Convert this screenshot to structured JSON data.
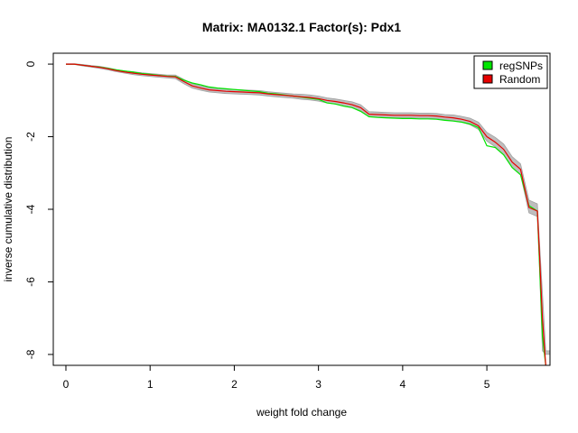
{
  "chart_data": {
    "type": "line",
    "title": "Matrix: MA0132.1 Factor(s): Pdx1",
    "xlabel": "weight fold change",
    "ylabel": "inverse cumulative distribution",
    "xlim": [
      -0.15,
      5.75
    ],
    "ylim": [
      -8.3,
      0.3
    ],
    "x_ticks": [
      0,
      1,
      2,
      3,
      4,
      5
    ],
    "y_ticks": [
      0,
      -2,
      -4,
      -6,
      -8
    ],
    "grid": false,
    "legend_position": "top-right",
    "colors": {
      "regSNPs": "#00e600",
      "Random": "#e60000",
      "band": "#bebebe",
      "band_edge": "#a0a0a0"
    },
    "series": [
      {
        "name": "regSNPs",
        "color": "#00e600",
        "x": [
          0,
          0.1,
          0.2,
          0.3,
          0.4,
          0.5,
          0.6,
          0.7,
          0.8,
          0.9,
          1.0,
          1.1,
          1.2,
          1.3,
          1.4,
          1.5,
          1.6,
          1.7,
          1.8,
          1.9,
          2.0,
          2.1,
          2.2,
          2.3,
          2.4,
          2.5,
          2.6,
          2.7,
          2.8,
          2.9,
          3.0,
          3.1,
          3.2,
          3.3,
          3.4,
          3.5,
          3.6,
          3.7,
          3.8,
          3.9,
          4.0,
          4.1,
          4.2,
          4.3,
          4.4,
          4.5,
          4.6,
          4.7,
          4.8,
          4.9,
          5.0,
          5.1,
          5.2,
          5.3,
          5.4,
          5.5,
          5.6,
          5.62,
          5.66,
          5.7
        ],
        "y": [
          0,
          0,
          -0.03,
          -0.06,
          -0.08,
          -0.12,
          -0.16,
          -0.19,
          -0.22,
          -0.26,
          -0.28,
          -0.31,
          -0.33,
          -0.34,
          -0.44,
          -0.52,
          -0.57,
          -0.63,
          -0.66,
          -0.68,
          -0.7,
          -0.72,
          -0.74,
          -0.76,
          -0.8,
          -0.82,
          -0.85,
          -0.88,
          -0.91,
          -0.94,
          -0.97,
          -1.07,
          -1.1,
          -1.16,
          -1.2,
          -1.3,
          -1.45,
          -1.47,
          -1.48,
          -1.49,
          -1.5,
          -1.5,
          -1.51,
          -1.51,
          -1.52,
          -1.55,
          -1.57,
          -1.6,
          -1.65,
          -1.75,
          -2.25,
          -2.3,
          -2.5,
          -2.85,
          -3.05,
          -3.9,
          -4.05,
          -5.2,
          -7.5,
          -8.3
        ]
      },
      {
        "name": "Random",
        "color": "#e60000",
        "x": [
          0,
          0.1,
          0.2,
          0.3,
          0.4,
          0.5,
          0.6,
          0.7,
          0.8,
          0.9,
          1.0,
          1.1,
          1.2,
          1.3,
          1.4,
          1.5,
          1.6,
          1.7,
          1.8,
          1.9,
          2.0,
          2.1,
          2.2,
          2.3,
          2.4,
          2.5,
          2.6,
          2.7,
          2.8,
          2.9,
          3.0,
          3.1,
          3.2,
          3.3,
          3.4,
          3.5,
          3.6,
          3.7,
          3.8,
          3.9,
          4.0,
          4.1,
          4.2,
          4.3,
          4.4,
          4.5,
          4.6,
          4.7,
          4.8,
          4.9,
          5.0,
          5.1,
          5.2,
          5.3,
          5.4,
          5.5,
          5.6,
          5.62,
          5.66,
          5.7
        ],
        "y": [
          0,
          0,
          -0.03,
          -0.06,
          -0.09,
          -0.13,
          -0.18,
          -0.22,
          -0.25,
          -0.28,
          -0.3,
          -0.32,
          -0.34,
          -0.35,
          -0.48,
          -0.6,
          -0.66,
          -0.71,
          -0.73,
          -0.75,
          -0.76,
          -0.77,
          -0.78,
          -0.79,
          -0.82,
          -0.84,
          -0.86,
          -0.88,
          -0.9,
          -0.92,
          -0.95,
          -1.0,
          -1.03,
          -1.07,
          -1.12,
          -1.2,
          -1.38,
          -1.39,
          -1.4,
          -1.41,
          -1.41,
          -1.41,
          -1.42,
          -1.42,
          -1.43,
          -1.46,
          -1.48,
          -1.52,
          -1.58,
          -1.7,
          -2.0,
          -2.15,
          -2.35,
          -2.7,
          -2.9,
          -3.95,
          -4.05,
          -5.0,
          -7.0,
          -8.3
        ]
      },
      {
        "name": "",
        "color": "#bebebe",
        "x": [
          0,
          0.1,
          0.2,
          0.3,
          0.4,
          0.5,
          0.6,
          0.7,
          0.8,
          0.9,
          1.0,
          1.1,
          1.2,
          1.3,
          1.4,
          1.5,
          1.6,
          1.7,
          1.8,
          1.9,
          2.0,
          2.1,
          2.2,
          2.3,
          2.4,
          2.5,
          2.6,
          2.7,
          2.8,
          2.9,
          3.0,
          3.1,
          3.2,
          3.3,
          3.4,
          3.5,
          3.6,
          3.7,
          3.8,
          3.9,
          4.0,
          4.1,
          4.2,
          4.3,
          4.4,
          4.5,
          4.6,
          4.7,
          4.8,
          4.9,
          5.0,
          5.1,
          5.2,
          5.3,
          5.4,
          5.5,
          5.6,
          5.62,
          5.66,
          5.7,
          5.75
        ],
        "y_low": [
          -0.01,
          -0.01,
          -0.05,
          -0.08,
          -0.12,
          -0.16,
          -0.21,
          -0.25,
          -0.29,
          -0.32,
          -0.34,
          -0.36,
          -0.38,
          -0.4,
          -0.54,
          -0.66,
          -0.72,
          -0.77,
          -0.79,
          -0.81,
          -0.82,
          -0.83,
          -0.84,
          -0.85,
          -0.88,
          -0.9,
          -0.92,
          -0.94,
          -0.97,
          -0.99,
          -1.02,
          -1.07,
          -1.1,
          -1.15,
          -1.2,
          -1.28,
          -1.45,
          -1.46,
          -1.47,
          -1.48,
          -1.48,
          -1.48,
          -1.49,
          -1.49,
          -1.5,
          -1.53,
          -1.56,
          -1.6,
          -1.67,
          -1.8,
          -2.12,
          -2.28,
          -2.5,
          -2.85,
          -3.05,
          -4.1,
          -4.2,
          -5.3,
          -7.9,
          -8.0,
          -8.0
        ],
        "y_high": [
          0.01,
          0.01,
          -0.01,
          -0.04,
          -0.06,
          -0.1,
          -0.15,
          -0.19,
          -0.21,
          -0.24,
          -0.26,
          -0.28,
          -0.3,
          -0.3,
          -0.42,
          -0.54,
          -0.6,
          -0.65,
          -0.67,
          -0.69,
          -0.7,
          -0.71,
          -0.72,
          -0.73,
          -0.76,
          -0.78,
          -0.8,
          -0.82,
          -0.83,
          -0.85,
          -0.88,
          -0.93,
          -0.96,
          -1.0,
          -1.04,
          -1.12,
          -1.31,
          -1.32,
          -1.33,
          -1.34,
          -1.34,
          -1.34,
          -1.35,
          -1.35,
          -1.36,
          -1.39,
          -1.4,
          -1.44,
          -1.49,
          -1.6,
          -1.88,
          -2.02,
          -2.2,
          -2.55,
          -2.75,
          -3.75,
          -3.85,
          -4.7,
          -6.3,
          -7.9,
          -7.9
        ]
      }
    ]
  }
}
